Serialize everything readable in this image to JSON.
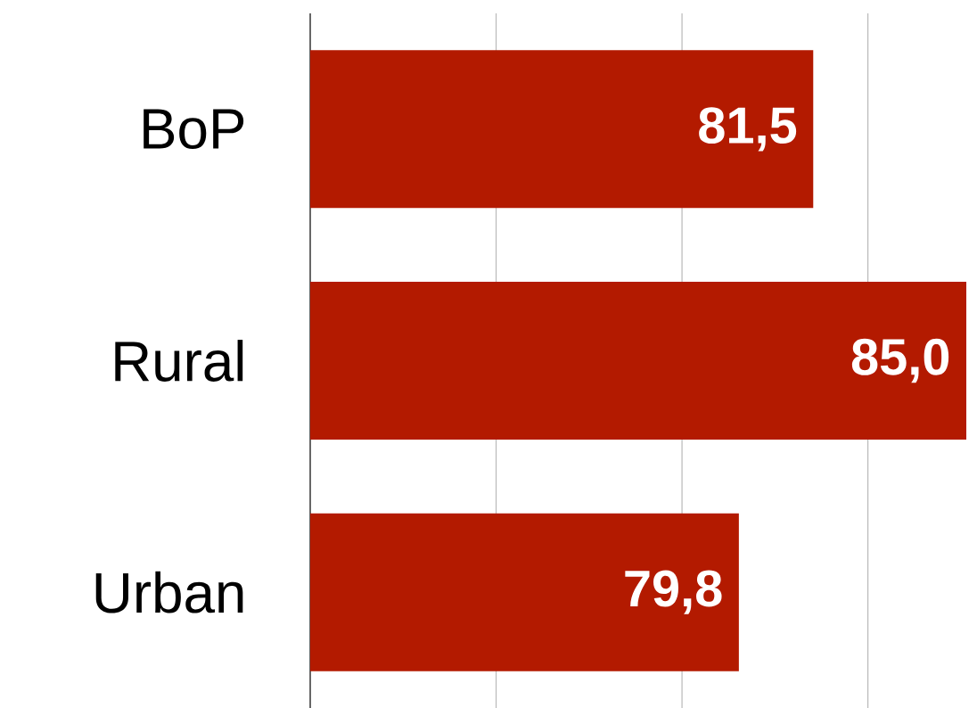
{
  "chart_data": {
    "type": "bar",
    "orientation": "horizontal",
    "categories": [
      "BoP",
      "Rural",
      "Urban"
    ],
    "values": [
      81.5,
      85.0,
      79.8
    ],
    "value_labels": [
      "81,5",
      "85,0",
      "79,8"
    ],
    "color": "#b31a00",
    "xlim": [
      70,
      85
    ],
    "xticks": [
      {
        "value": 74.25,
        "label": null
      },
      {
        "value": 78.5,
        "label": null
      },
      {
        "value": 82.75,
        "label": null
      }
    ],
    "tick_labels": "y",
    "grid": "x"
  }
}
